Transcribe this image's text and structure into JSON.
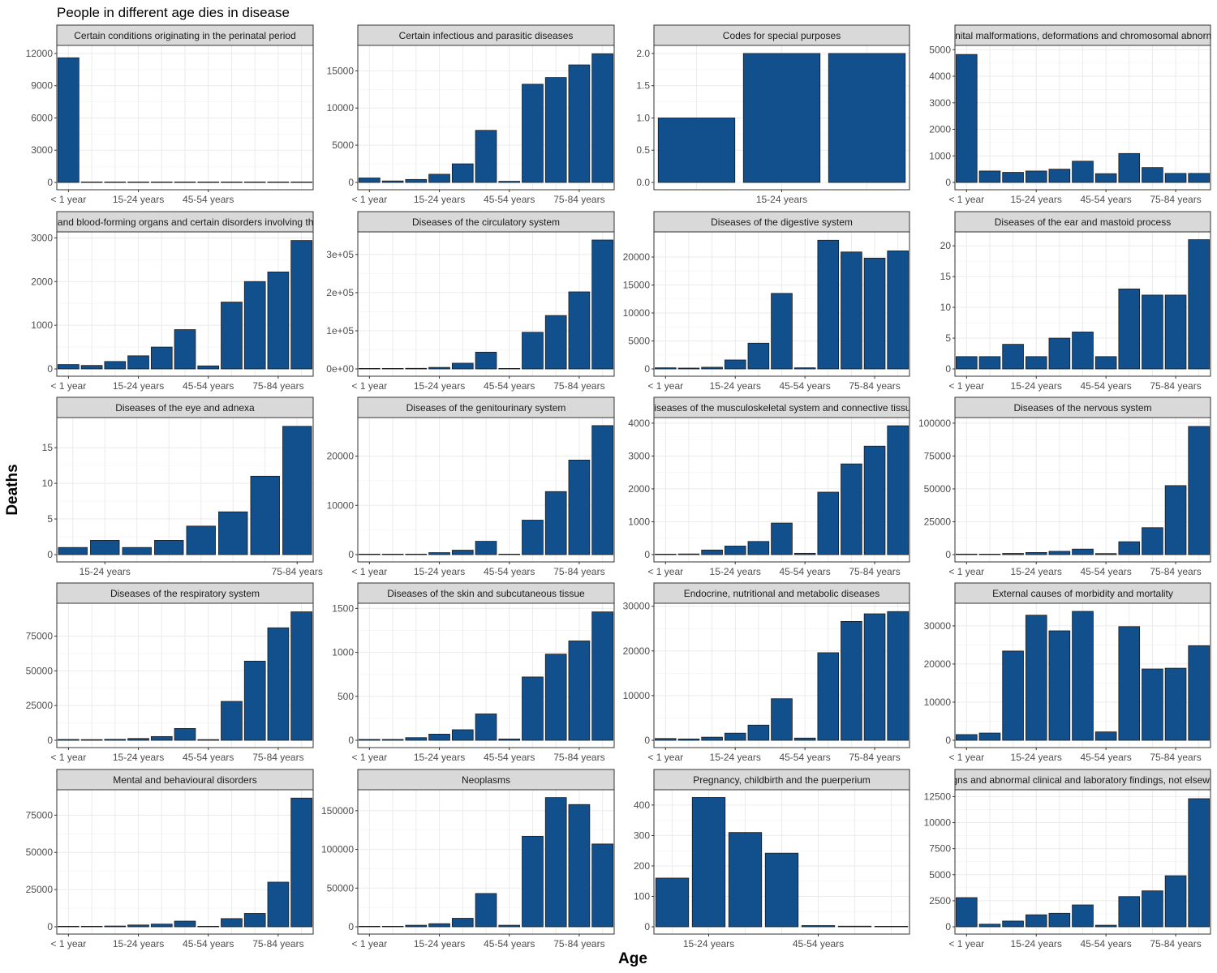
{
  "title": "People in different age dies in disease",
  "xlabel": "Age",
  "ylabel": "Deaths",
  "colors": {
    "bar_fill": "#11508C",
    "bar_stroke": "#1a1a1a",
    "strip_fill": "#D9D9D9",
    "grid": "#EBEBEB"
  },
  "chart_data": [
    {
      "type": "bar",
      "title": "Certain conditions originating in the perinatal period",
      "categories": [
        "< 1 year",
        "1-4 years",
        "5-14 years",
        "15-24 years",
        "25-34 years",
        "35-44 years",
        "45-54 years",
        "55-64 years",
        "65-74 years",
        "75-84 years",
        "85+ years"
      ],
      "values": [
        11600,
        40,
        20,
        30,
        20,
        15,
        12,
        10,
        8,
        5,
        3
      ],
      "x_ticks": [
        "< 1 year",
        "15-24 years",
        "45-54 years"
      ],
      "ylim": [
        0,
        12600
      ],
      "y_ticks": [
        0,
        3000,
        6000,
        9000,
        12000
      ]
    },
    {
      "type": "bar",
      "title": "Certain infectious and parasitic diseases",
      "categories": [
        "< 1 year",
        "1-4 years",
        "5-14 years",
        "15-24 years",
        "25-34 years",
        "35-44 years",
        "45-54 years",
        "55-64 years",
        "65-74 years",
        "75-84 years",
        "85+ years"
      ],
      "values": [
        600,
        200,
        400,
        1100,
        2500,
        7000,
        150,
        13200,
        14100,
        15800,
        17300
      ],
      "x_ticks": [
        "< 1 year",
        "15-24 years",
        "45-54 years",
        "75-84 years"
      ],
      "ylim": [
        0,
        18200
      ],
      "y_ticks": [
        0,
        5000,
        10000,
        15000
      ]
    },
    {
      "type": "bar",
      "title": "Codes for special purposes",
      "categories": [
        "5-14 years",
        "15-24 years",
        "25-34 years"
      ],
      "values": [
        1,
        2,
        2
      ],
      "x_ticks": [
        "15-24 years"
      ],
      "ylim": [
        0,
        2.1
      ],
      "y_ticks": [
        "0.0",
        "0.5",
        "1.0",
        "1.5",
        "2.0"
      ]
    },
    {
      "type": "bar",
      "title": "Congenital malformations, deformations and chromosomal abnormalities",
      "categories": [
        "< 1 year",
        "1-4 years",
        "5-14 years",
        "15-24 years",
        "25-34 years",
        "35-44 years",
        "45-54 years",
        "55-64 years",
        "65-74 years",
        "75-84 years",
        "85+ years"
      ],
      "values": [
        4820,
        430,
        380,
        430,
        500,
        800,
        330,
        1090,
        560,
        340,
        340
      ],
      "x_ticks": [
        "< 1 year",
        "15-24 years",
        "45-54 years",
        "75-84 years"
      ],
      "ylim": [
        0,
        5100
      ],
      "y_ticks": [
        0,
        1000,
        2000,
        3000,
        4000,
        5000
      ]
    },
    {
      "type": "bar",
      "title": "Diseases of the blood and blood-forming organs and certain disorders involving the immune mechanism",
      "categories": [
        "< 1 year",
        "1-4 years",
        "5-14 years",
        "15-24 years",
        "25-34 years",
        "35-44 years",
        "45-54 years",
        "55-64 years",
        "65-74 years",
        "75-84 years",
        "85+ years"
      ],
      "values": [
        100,
        80,
        170,
        300,
        500,
        900,
        70,
        1530,
        2000,
        2220,
        2940
      ],
      "x_ticks": [
        "< 1 year",
        "15-24 years",
        "45-54 years",
        "75-84 years"
      ],
      "ylim": [
        0,
        3100
      ],
      "y_ticks": [
        0,
        1000,
        2000,
        3000
      ]
    },
    {
      "type": "bar",
      "title": "Diseases of the circulatory system",
      "categories": [
        "< 1 year",
        "1-4 years",
        "5-14 years",
        "15-24 years",
        "25-34 years",
        "35-44 years",
        "45-54 years",
        "55-64 years",
        "65-74 years",
        "75-84 years",
        "85+ years"
      ],
      "values": [
        800,
        600,
        1500,
        4000,
        15000,
        44000,
        1000,
        96000,
        140000,
        202000,
        338000
      ],
      "x_ticks": [
        "< 1 year",
        "15-24 years",
        "45-54 years",
        "75-84 years"
      ],
      "ylim": [
        0,
        355000
      ],
      "y_ticks": [
        "0e+00",
        "1e+05",
        "2e+05",
        "3e+05"
      ]
    },
    {
      "type": "bar",
      "title": "Diseases of the digestive system",
      "categories": [
        "< 1 year",
        "1-4 years",
        "5-14 years",
        "15-24 years",
        "25-34 years",
        "35-44 years",
        "45-54 years",
        "55-64 years",
        "65-74 years",
        "75-84 years",
        "85+ years"
      ],
      "values": [
        200,
        150,
        300,
        1600,
        4600,
        13500,
        200,
        23000,
        20900,
        19800,
        21100
      ],
      "x_ticks": [
        "< 1 year",
        "15-24 years",
        "45-54 years",
        "75-84 years"
      ],
      "ylim": [
        0,
        24200
      ],
      "y_ticks": [
        0,
        5000,
        10000,
        15000,
        20000
      ]
    },
    {
      "type": "bar",
      "title": "Diseases of the ear and mastoid process",
      "categories": [
        "< 1 year",
        "1-4 years",
        "5-14 years",
        "15-24 years",
        "25-34 years",
        "35-44 years",
        "45-54 years",
        "55-64 years",
        "65-74 years",
        "75-84 years",
        "85+ years"
      ],
      "values": [
        2,
        2,
        4,
        2,
        5,
        6,
        2,
        13,
        12,
        12,
        21
      ],
      "x_ticks": [
        "< 1 year",
        "15-24 years",
        "45-54 years",
        "75-84 years"
      ],
      "ylim": [
        0,
        22
      ],
      "y_ticks": [
        0,
        5,
        10,
        15,
        20
      ]
    },
    {
      "type": "bar",
      "title": "Diseases of the eye and adnexa",
      "categories": [
        "5-14 years",
        "15-24 years",
        "25-34 years",
        "35-44 years",
        "45-54 years",
        "55-64 years",
        "65-74 years",
        "75-84 years"
      ],
      "values": [
        1,
        2,
        1,
        2,
        4,
        6,
        11,
        18
      ],
      "x_ticks": [
        "15-24 years",
        "75-84 years"
      ],
      "ylim": [
        0,
        19
      ],
      "y_ticks": [
        0,
        5,
        10,
        15
      ]
    },
    {
      "type": "bar",
      "title": "Diseases of the genitourinary system",
      "categories": [
        "< 1 year",
        "1-4 years",
        "5-14 years",
        "15-24 years",
        "25-34 years",
        "35-44 years",
        "45-54 years",
        "55-64 years",
        "65-74 years",
        "75-84 years",
        "85+ years"
      ],
      "values": [
        100,
        50,
        100,
        400,
        900,
        2700,
        100,
        7000,
        12800,
        19200,
        26200
      ],
      "x_ticks": [
        "< 1 year",
        "15-24 years",
        "45-54 years",
        "75-84 years"
      ],
      "ylim": [
        0,
        27500
      ],
      "y_ticks": [
        0,
        10000,
        20000
      ]
    },
    {
      "type": "bar",
      "title": "Diseases of the musculoskeletal system and connective tissue",
      "categories": [
        "< 1 year",
        "1-4 years",
        "5-14 years",
        "15-24 years",
        "25-34 years",
        "35-44 years",
        "45-54 years",
        "55-64 years",
        "65-74 years",
        "75-84 years",
        "85+ years"
      ],
      "values": [
        10,
        20,
        140,
        260,
        400,
        960,
        40,
        1900,
        2760,
        3300,
        3920
      ],
      "x_ticks": [
        "< 1 year",
        "15-24 years",
        "45-54 years",
        "75-84 years"
      ],
      "ylim": [
        0,
        4120
      ],
      "y_ticks": [
        0,
        1000,
        2000,
        3000,
        4000
      ]
    },
    {
      "type": "bar",
      "title": "Diseases of the nervous system",
      "categories": [
        "< 1 year",
        "1-4 years",
        "5-14 years",
        "15-24 years",
        "25-34 years",
        "35-44 years",
        "45-54 years",
        "55-64 years",
        "65-74 years",
        "75-84 years",
        "85+ years"
      ],
      "values": [
        400,
        300,
        900,
        1600,
        2500,
        4200,
        800,
        9800,
        20500,
        52500,
        97500
      ],
      "x_ticks": [
        "< 1 year",
        "15-24 years",
        "45-54 years",
        "75-84 years"
      ],
      "ylim": [
        0,
        103000
      ],
      "y_ticks": [
        0,
        25000,
        50000,
        75000,
        100000
      ]
    },
    {
      "type": "bar",
      "title": "Diseases of the respiratory system",
      "categories": [
        "< 1 year",
        "1-4 years",
        "5-14 years",
        "15-24 years",
        "25-34 years",
        "35-44 years",
        "45-54 years",
        "55-64 years",
        "65-74 years",
        "75-84 years",
        "85+ years"
      ],
      "values": [
        600,
        500,
        700,
        1300,
        2700,
        8500,
        500,
        28000,
        57000,
        81000,
        92500
      ],
      "x_ticks": [
        "< 1 year",
        "15-24 years",
        "45-54 years",
        "75-84 years"
      ],
      "ylim": [
        0,
        97500
      ],
      "y_ticks": [
        0,
        25000,
        50000,
        75000
      ]
    },
    {
      "type": "bar",
      "title": "Diseases of the skin and subcutaneous tissue",
      "categories": [
        "< 1 year",
        "1-4 years",
        "5-14 years",
        "15-24 years",
        "25-34 years",
        "35-44 years",
        "45-54 years",
        "55-64 years",
        "65-74 years",
        "75-84 years",
        "85+ years"
      ],
      "values": [
        10,
        10,
        30,
        70,
        120,
        300,
        15,
        720,
        980,
        1130,
        1460
      ],
      "x_ticks": [
        "< 1 year",
        "15-24 years",
        "45-54 years",
        "75-84 years"
      ],
      "ylim": [
        0,
        1540
      ],
      "y_ticks": [
        0,
        500,
        1000,
        1500
      ]
    },
    {
      "type": "bar",
      "title": "Endocrine, nutritional and metabolic diseases",
      "categories": [
        "< 1 year",
        "1-4 years",
        "5-14 years",
        "15-24 years",
        "25-34 years",
        "35-44 years",
        "45-54 years",
        "55-64 years",
        "65-74 years",
        "75-84 years",
        "85+ years"
      ],
      "values": [
        400,
        300,
        700,
        1600,
        3400,
        9300,
        500,
        19600,
        26600,
        28300,
        28800
      ],
      "x_ticks": [
        "< 1 year",
        "15-24 years",
        "45-54 years",
        "75-84 years"
      ],
      "ylim": [
        0,
        30300
      ],
      "y_ticks": [
        0,
        10000,
        20000,
        30000
      ]
    },
    {
      "type": "bar",
      "title": "External causes of morbidity and mortality",
      "categories": [
        "< 1 year",
        "1-4 years",
        "5-14 years",
        "15-24 years",
        "25-34 years",
        "35-44 years",
        "45-54 years",
        "55-64 years",
        "65-74 years",
        "75-84 years",
        "85+ years"
      ],
      "values": [
        1500,
        1900,
        23400,
        32800,
        28700,
        33800,
        2200,
        29800,
        18700,
        18900,
        24800
      ],
      "x_ticks": [
        "< 1 year",
        "15-24 years",
        "45-54 years",
        "75-84 years"
      ],
      "ylim": [
        0,
        35500
      ],
      "y_ticks": [
        0,
        10000,
        20000,
        30000
      ]
    },
    {
      "type": "bar",
      "title": "Mental and behavioural disorders",
      "categories": [
        "< 1 year",
        "1-4 years",
        "5-14 years",
        "15-24 years",
        "25-34 years",
        "35-44 years",
        "45-54 years",
        "55-64 years",
        "65-74 years",
        "75-84 years",
        "85+ years"
      ],
      "values": [
        100,
        100,
        500,
        1200,
        1800,
        3800,
        300,
        5500,
        9000,
        30000,
        86500
      ],
      "x_ticks": [
        "< 1 year",
        "15-24 years",
        "45-54 years",
        "75-84 years"
      ],
      "ylim": [
        0,
        91000
      ],
      "y_ticks": [
        0,
        25000,
        50000,
        75000
      ]
    },
    {
      "type": "bar",
      "title": "Neoplasms",
      "categories": [
        "< 1 year",
        "1-4 years",
        "5-14 years",
        "15-24 years",
        "25-34 years",
        "35-44 years",
        "45-54 years",
        "55-64 years",
        "65-74 years",
        "75-84 years",
        "85+ years"
      ],
      "values": [
        300,
        400,
        2000,
        4000,
        11000,
        43000,
        2000,
        117000,
        167000,
        158000,
        107000
      ],
      "x_ticks": [
        "< 1 year",
        "15-24 years",
        "45-54 years",
        "75-84 years"
      ],
      "ylim": [
        0,
        175000
      ],
      "y_ticks": [
        0,
        50000,
        100000,
        150000
      ]
    },
    {
      "type": "bar",
      "title": "Pregnancy, childbirth and the puerperium",
      "categories": [
        "5-14 years",
        "15-24 years",
        "25-34 years",
        "35-44 years",
        "45-54 years",
        "55-64 years",
        "65-74 years"
      ],
      "values": [
        160,
        425,
        310,
        242,
        4,
        2,
        1
      ],
      "x_ticks": [
        "15-24 years",
        "45-54 years"
      ],
      "ylim": [
        0,
        445
      ],
      "y_ticks": [
        0,
        100,
        200,
        300,
        400
      ]
    },
    {
      "type": "bar",
      "title": "Symptoms, signs and abnormal clinical and laboratory findings, not elsewhere classified",
      "categories": [
        "< 1 year",
        "1-4 years",
        "5-14 years",
        "15-24 years",
        "25-34 years",
        "35-44 years",
        "45-54 years",
        "55-64 years",
        "65-74 years",
        "75-84 years",
        "85+ years"
      ],
      "values": [
        2800,
        250,
        550,
        1150,
        1300,
        2100,
        150,
        2900,
        3450,
        4900,
        12300
      ],
      "x_ticks": [
        "< 1 year",
        "15-24 years",
        "45-54 years",
        "75-84 years"
      ],
      "ylim": [
        0,
        13000
      ],
      "y_ticks": [
        0,
        2500,
        5000,
        7500,
        10000,
        12500
      ]
    }
  ]
}
